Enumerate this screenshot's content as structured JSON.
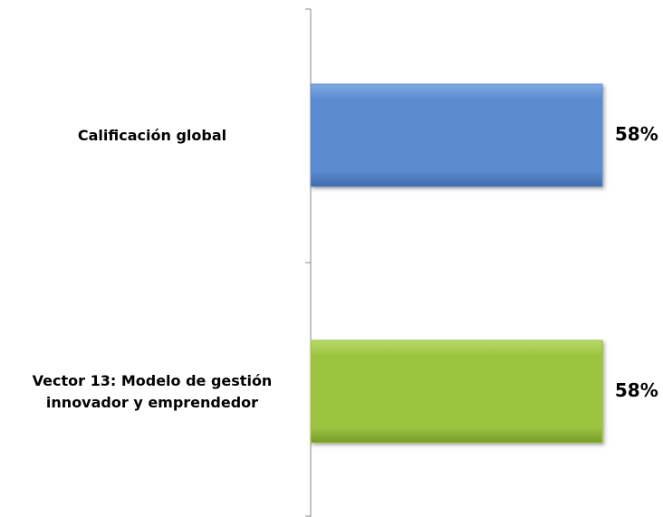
{
  "chart_data": {
    "type": "bar",
    "orientation": "horizontal",
    "categories": [
      "Calificación global",
      "Vector 13: Modelo de gestión innovador y emprendedor"
    ],
    "values": [
      58,
      58
    ],
    "value_labels": [
      "58%",
      "58%"
    ],
    "colors": [
      "#5a8bd0",
      "#9cc43f"
    ]
  }
}
